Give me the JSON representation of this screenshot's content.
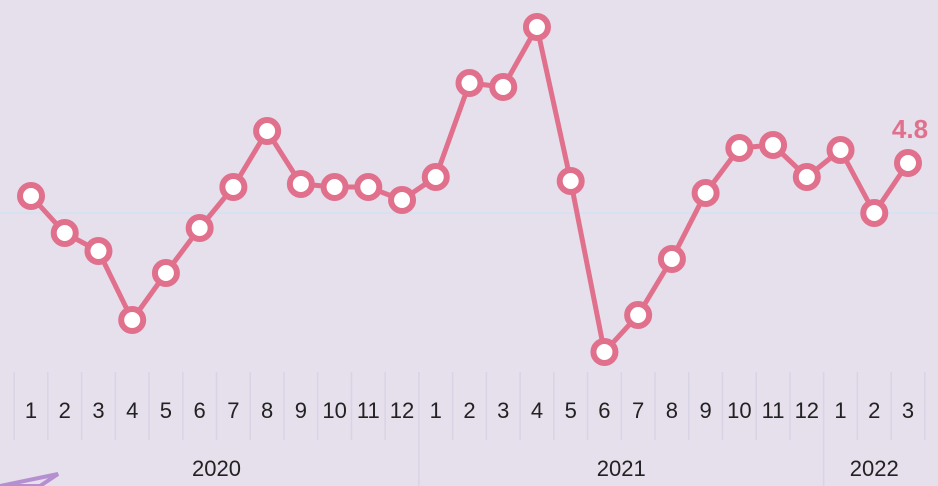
{
  "chart_data": {
    "type": "line",
    "categories": [
      "1",
      "2",
      "3",
      "4",
      "5",
      "6",
      "7",
      "8",
      "9",
      "10",
      "11",
      "12",
      "1",
      "2",
      "3",
      "4",
      "5",
      "6",
      "7",
      "8",
      "9",
      "10",
      "11",
      "12",
      "1",
      "2",
      "3"
    ],
    "years": [
      "2020",
      "2021",
      "2022"
    ],
    "series": [
      {
        "color": "#e0708c",
        "values": [
          1.5,
          -2.2,
          -4.0,
          -10.9,
          -6.2,
          -1.7,
          2.4,
          8.0,
          2.7,
          2.4,
          2.4,
          1.1,
          3.4,
          12.8,
          12.4,
          18.4,
          3.0,
          -14.1,
          -10.4,
          -4.8,
          1.8,
          6.3,
          6.6,
          3.4,
          6.1,
          -0.2,
          4.8
        ]
      }
    ]
  }
}
